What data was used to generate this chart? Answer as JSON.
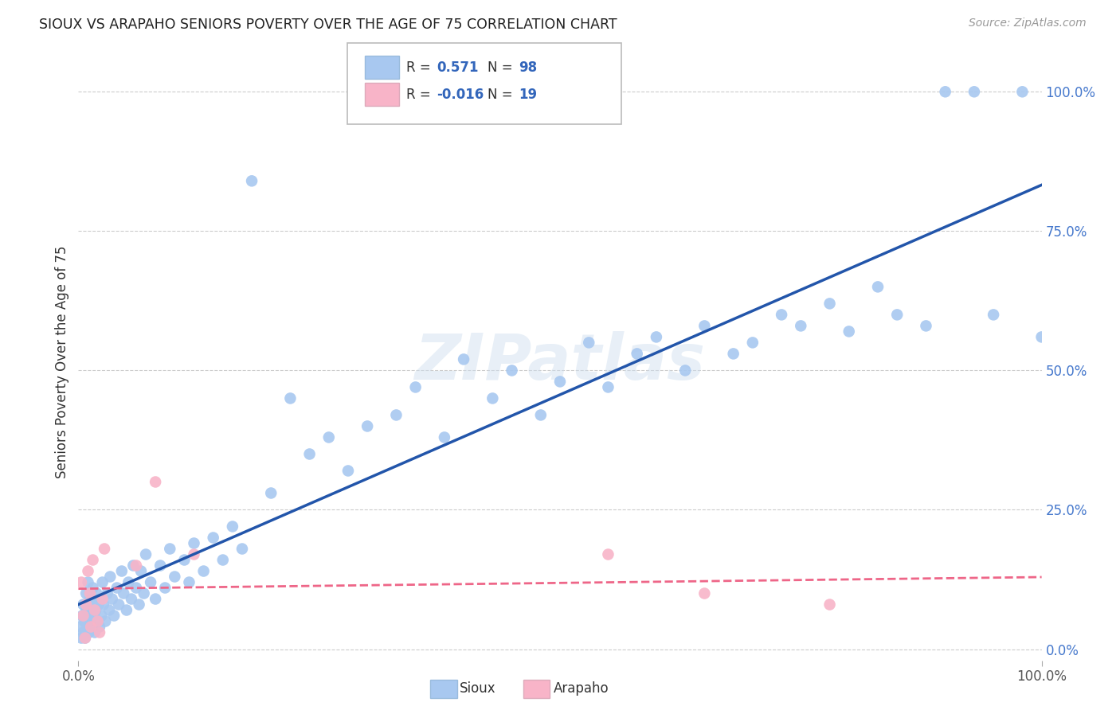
{
  "title": "SIOUX VS ARAPAHO SENIORS POVERTY OVER THE AGE OF 75 CORRELATION CHART",
  "source": "Source: ZipAtlas.com",
  "ylabel": "Seniors Poverty Over the Age of 75",
  "xlim": [
    0,
    1.0
  ],
  "ylim": [
    -0.02,
    1.05
  ],
  "ytick_positions": [
    0.0,
    0.25,
    0.5,
    0.75,
    1.0
  ],
  "sioux_color": "#a8c8f0",
  "arapaho_color": "#f8b4c8",
  "sioux_line_color": "#2255aa",
  "arapaho_line_color": "#ee6688",
  "R_sioux": 0.571,
  "N_sioux": 98,
  "R_arapaho": -0.016,
  "N_arapaho": 19,
  "background_color": "#ffffff",
  "grid_color": "#cccccc",
  "watermark": "ZIPatlas",
  "sioux_x": [
    0.002,
    0.003,
    0.004,
    0.005,
    0.005,
    0.006,
    0.007,
    0.008,
    0.008,
    0.009,
    0.01,
    0.01,
    0.011,
    0.012,
    0.012,
    0.013,
    0.014,
    0.015,
    0.015,
    0.016,
    0.017,
    0.018,
    0.019,
    0.02,
    0.021,
    0.022,
    0.023,
    0.024,
    0.025,
    0.026,
    0.028,
    0.03,
    0.032,
    0.033,
    0.035,
    0.037,
    0.04,
    0.042,
    0.045,
    0.047,
    0.05,
    0.052,
    0.055,
    0.057,
    0.06,
    0.063,
    0.065,
    0.068,
    0.07,
    0.075,
    0.08,
    0.085,
    0.09,
    0.095,
    0.1,
    0.11,
    0.115,
    0.12,
    0.13,
    0.14,
    0.15,
    0.16,
    0.17,
    0.18,
    0.2,
    0.22,
    0.24,
    0.26,
    0.28,
    0.3,
    0.33,
    0.35,
    0.38,
    0.4,
    0.43,
    0.45,
    0.48,
    0.5,
    0.53,
    0.55,
    0.58,
    0.6,
    0.63,
    0.65,
    0.68,
    0.7,
    0.73,
    0.75,
    0.78,
    0.8,
    0.83,
    0.85,
    0.88,
    0.9,
    0.93,
    0.95,
    0.98,
    1.0
  ],
  "sioux_y": [
    0.04,
    0.02,
    0.06,
    0.03,
    0.08,
    0.05,
    0.02,
    0.07,
    0.1,
    0.04,
    0.06,
    0.12,
    0.03,
    0.05,
    0.09,
    0.07,
    0.04,
    0.08,
    0.11,
    0.06,
    0.03,
    0.07,
    0.1,
    0.05,
    0.08,
    0.04,
    0.09,
    0.06,
    0.12,
    0.08,
    0.05,
    0.1,
    0.07,
    0.13,
    0.09,
    0.06,
    0.11,
    0.08,
    0.14,
    0.1,
    0.07,
    0.12,
    0.09,
    0.15,
    0.11,
    0.08,
    0.14,
    0.1,
    0.17,
    0.12,
    0.09,
    0.15,
    0.11,
    0.18,
    0.13,
    0.16,
    0.12,
    0.19,
    0.14,
    0.2,
    0.16,
    0.22,
    0.18,
    0.84,
    0.28,
    0.45,
    0.35,
    0.38,
    0.32,
    0.4,
    0.42,
    0.47,
    0.38,
    0.52,
    0.45,
    0.5,
    0.42,
    0.48,
    0.55,
    0.47,
    0.53,
    0.56,
    0.5,
    0.58,
    0.53,
    0.55,
    0.6,
    0.58,
    0.62,
    0.57,
    0.65,
    0.6,
    0.58,
    1.0,
    1.0,
    0.6,
    1.0,
    0.56
  ],
  "arapaho_x": [
    0.003,
    0.005,
    0.007,
    0.008,
    0.01,
    0.012,
    0.013,
    0.015,
    0.017,
    0.02,
    0.022,
    0.025,
    0.027,
    0.06,
    0.08,
    0.12,
    0.55,
    0.65,
    0.78
  ],
  "arapaho_y": [
    0.12,
    0.06,
    0.02,
    0.08,
    0.14,
    0.1,
    0.04,
    0.16,
    0.07,
    0.05,
    0.03,
    0.09,
    0.18,
    0.15,
    0.3,
    0.17,
    0.17,
    0.1,
    0.08
  ]
}
